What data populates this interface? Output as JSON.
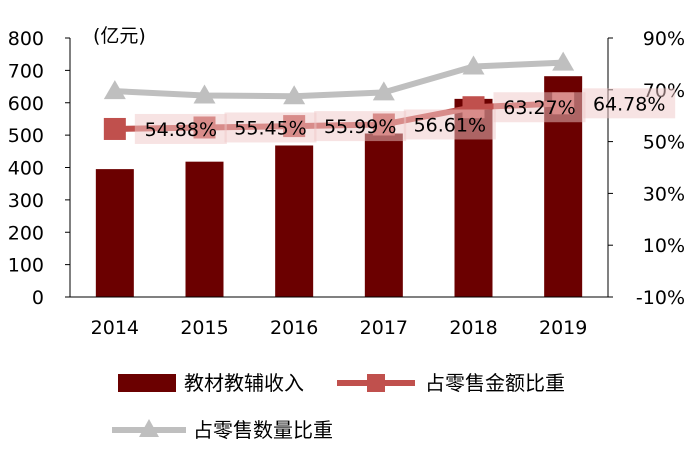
{
  "chart_data": {
    "type": "bar",
    "categories": [
      "2014",
      "2015",
      "2016",
      "2017",
      "2018",
      "2019"
    ],
    "left_axis": {
      "unit_label": "(亿元)",
      "range": [
        0,
        800
      ],
      "ticks": [
        "0",
        "100",
        "200",
        "300",
        "400",
        "500",
        "600",
        "700",
        "800"
      ]
    },
    "right_axis": {
      "range": [
        -10,
        90
      ],
      "ticks": [
        "-10%",
        "10%",
        "30%",
        "50%",
        "70%",
        "90%"
      ]
    },
    "series": [
      {
        "name": "教材教辅收入",
        "kind": "bar",
        "axis": "left",
        "color": "#6B0000",
        "values": [
          395,
          418,
          468,
          505,
          612,
          682
        ]
      },
      {
        "name": "占零售金额比重",
        "kind": "line",
        "marker": "square",
        "axis": "right",
        "color": "#C0504D",
        "values": [
          54.88,
          55.45,
          55.99,
          56.61,
          63.27,
          64.78
        ],
        "labels": [
          "54.88%",
          "55.45%",
          "55.99%",
          "56.61%",
          "63.27%",
          "64.78%"
        ]
      },
      {
        "name": "占零售数量比重",
        "kind": "line",
        "marker": "triangle",
        "axis": "right",
        "color": "#BFBFBF",
        "values": [
          69.5,
          67.8,
          67.5,
          69.0,
          79.0,
          80.5
        ]
      }
    ],
    "grid": false,
    "legend_placement": "bottom"
  }
}
